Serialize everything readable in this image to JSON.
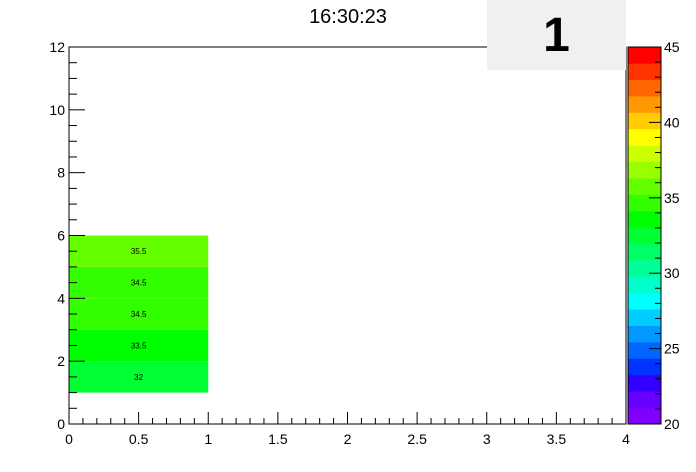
{
  "chart_data": {
    "type": "heatmap",
    "title": "16:30:23",
    "badge": "1",
    "xlim": [
      0,
      4
    ],
    "ylim": [
      0,
      12
    ],
    "x_ticks": [
      {
        "v": 0,
        "label": "0"
      },
      {
        "v": 0.5,
        "label": "0.5"
      },
      {
        "v": 1,
        "label": "1"
      },
      {
        "v": 1.5,
        "label": "1.5"
      },
      {
        "v": 2,
        "label": "2"
      },
      {
        "v": 2.5,
        "label": "2.5"
      },
      {
        "v": 3,
        "label": "3"
      },
      {
        "v": 3.5,
        "label": "3.5"
      },
      {
        "v": 4,
        "label": "4"
      }
    ],
    "y_ticks": [
      {
        "v": 0,
        "label": "0"
      },
      {
        "v": 2,
        "label": "2"
      },
      {
        "v": 4,
        "label": "4"
      },
      {
        "v": 6,
        "label": "6"
      },
      {
        "v": 8,
        "label": "8"
      },
      {
        "v": 10,
        "label": "10"
      },
      {
        "v": 12,
        "label": "12"
      }
    ],
    "cells": [
      {
        "x0": 0,
        "x1": 1,
        "y0": 1,
        "y1": 2,
        "value": 32,
        "label": "32"
      },
      {
        "x0": 0,
        "x1": 1,
        "y0": 2,
        "y1": 3,
        "value": 33.5,
        "label": "33.5"
      },
      {
        "x0": 0,
        "x1": 1,
        "y0": 3,
        "y1": 4,
        "value": 34.5,
        "label": "34.5"
      },
      {
        "x0": 0,
        "x1": 1,
        "y0": 4,
        "y1": 5,
        "value": 34.5,
        "label": "34.5"
      },
      {
        "x0": 0,
        "x1": 1,
        "y0": 5,
        "y1": 6,
        "value": 35.5,
        "label": "35.5"
      }
    ],
    "colorbar": {
      "min": 20,
      "max": 45,
      "ticks": [
        {
          "v": 20,
          "label": "20"
        },
        {
          "v": 25,
          "label": "25"
        },
        {
          "v": 30,
          "label": "30"
        },
        {
          "v": 35,
          "label": "35"
        },
        {
          "v": 40,
          "label": "40"
        },
        {
          "v": 45,
          "label": "45"
        }
      ],
      "colors": [
        "#7f00ff",
        "#6600ff",
        "#3300ff",
        "#0033ff",
        "#0066ff",
        "#0099ff",
        "#00ccff",
        "#00ffff",
        "#00ffcc",
        "#00ff99",
        "#00ff66",
        "#00ff33",
        "#00ff00",
        "#33ff00",
        "#66ff00",
        "#99ff00",
        "#ccff00",
        "#ffff00",
        "#ffcc00",
        "#ff9900",
        "#ff6600",
        "#ff3300",
        "#ff0000"
      ]
    }
  }
}
